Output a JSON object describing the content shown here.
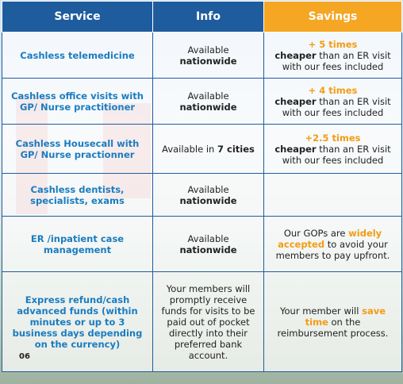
{
  "table": {
    "header": [
      "Service",
      "Info",
      "Savings"
    ],
    "rows": [
      [
        [
          [
            {
              "text": "Cashless telemedicine"
            }
          ]
        ],
        [
          [
            {
              "text": "Available "
            },
            {
              "text": "nationwide",
              "style": "bold"
            }
          ]
        ],
        [
          [
            {
              "text": "+ 5 times",
              "style": "orange"
            }
          ],
          [
            {
              "text": "cheaper",
              "style": "bold"
            },
            {
              "text": " than an ER visit with our fees included"
            }
          ]
        ]
      ],
      [
        [
          [
            {
              "text": "Cashless office visits with GP/ Nurse practitioner"
            }
          ]
        ],
        [
          [
            {
              "text": "Available "
            },
            {
              "text": "nationwide",
              "style": "bold"
            }
          ]
        ],
        [
          [
            {
              "text": "+ 4 times",
              "style": "orange"
            }
          ],
          [
            {
              "text": "cheaper",
              "style": "bold"
            },
            {
              "text": " than an ER visit with our fees included"
            }
          ]
        ]
      ],
      [
        [
          [
            {
              "text": "Cashless Housecall with GP/ Nurse practionner"
            }
          ]
        ],
        [
          [
            {
              "text": "Available in "
            },
            {
              "text": "7 cities",
              "style": "bold"
            }
          ]
        ],
        [
          [
            {
              "text": "+2.5 times",
              "style": "orange"
            }
          ],
          [
            {
              "text": "cheaper",
              "style": "bold"
            },
            {
              "text": " than an ER visit with our fees included"
            }
          ]
        ]
      ],
      [
        [
          [
            {
              "text": "Cashless dentists, specialists, exams"
            }
          ]
        ],
        [
          [
            {
              "text": "Available "
            },
            {
              "text": "nationwide",
              "style": "bold"
            }
          ]
        ],
        []
      ],
      [
        [
          [
            {
              "text": "ER /inpatient case management"
            }
          ]
        ],
        [
          [
            {
              "text": "Available "
            },
            {
              "text": "nationwide",
              "style": "bold"
            }
          ]
        ],
        [
          [
            {
              "text": "Our GOPs are "
            },
            {
              "text": "widely accepted",
              "style": "orange"
            },
            {
              "text": " to avoid your members to pay upfront."
            }
          ]
        ]
      ],
      [
        [
          [
            {
              "text": "Express refund/cash advanced funds (within minutes or up to 3 business days depending on the currency)"
            }
          ]
        ],
        [
          [
            {
              "text": "Your members will promptly receive funds for visits to be paid out of pocket directly into their preferred bank account."
            }
          ]
        ],
        [
          [
            {
              "text": "Your member will "
            },
            {
              "text": "save time",
              "style": "orange"
            },
            {
              "text": " on the reimbursement process."
            }
          ]
        ]
      ]
    ]
  },
  "page_number": "06"
}
